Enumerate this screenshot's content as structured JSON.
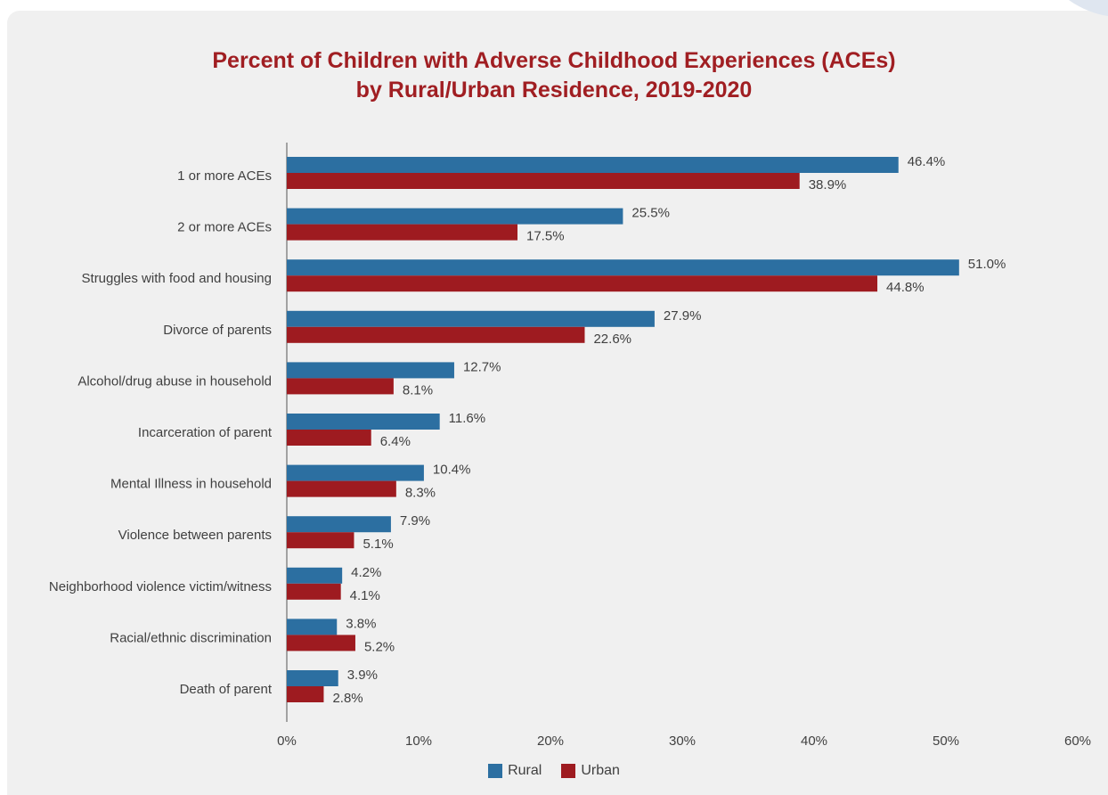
{
  "chart_data": {
    "type": "bar",
    "orientation": "horizontal",
    "title": "Percent of Children with Adverse Childhood Experiences (ACEs)",
    "subtitle": "by Rural/Urban Residence, 2019-2020",
    "xlabel": "",
    "ylabel": "",
    "xlim": [
      0,
      60
    ],
    "x_ticks": [
      0,
      10,
      20,
      30,
      40,
      50,
      60
    ],
    "x_tick_labels": [
      "0%",
      "10%",
      "20%",
      "30%",
      "40%",
      "50%",
      "60%"
    ],
    "grid": false,
    "legend_position": "bottom",
    "categories": [
      "1 or more ACEs",
      "2 or more ACEs",
      "Struggles with food and housing",
      "Divorce of parents",
      "Alcohol/drug abuse in household",
      "Incarceration of parent",
      "Mental Illness in household",
      "Violence between parents",
      "Neighborhood violence victim/witness",
      "Racial/ethnic discrimination",
      "Death of parent"
    ],
    "series": [
      {
        "name": "Rural",
        "color": "#2c6fa1",
        "values": [
          46.4,
          25.5,
          51.0,
          27.9,
          12.7,
          11.6,
          10.4,
          7.9,
          4.2,
          3.8,
          3.9
        ],
        "labels": [
          "46.4%",
          "25.5%",
          "51.0%",
          "27.9%",
          "12.7%",
          "11.6%",
          "10.4%",
          "7.9%",
          "4.2%",
          "3.8%",
          "3.9%"
        ]
      },
      {
        "name": "Urban",
        "color": "#9e1b20",
        "values": [
          38.9,
          17.5,
          44.8,
          22.6,
          8.1,
          6.4,
          8.3,
          5.1,
          4.1,
          5.2,
          2.8
        ],
        "labels": [
          "38.9%",
          "17.5%",
          "44.8%",
          "22.6%",
          "8.1%",
          "6.4%",
          "8.3%",
          "5.1%",
          "4.1%",
          "5.2%",
          "2.8%"
        ]
      }
    ]
  }
}
